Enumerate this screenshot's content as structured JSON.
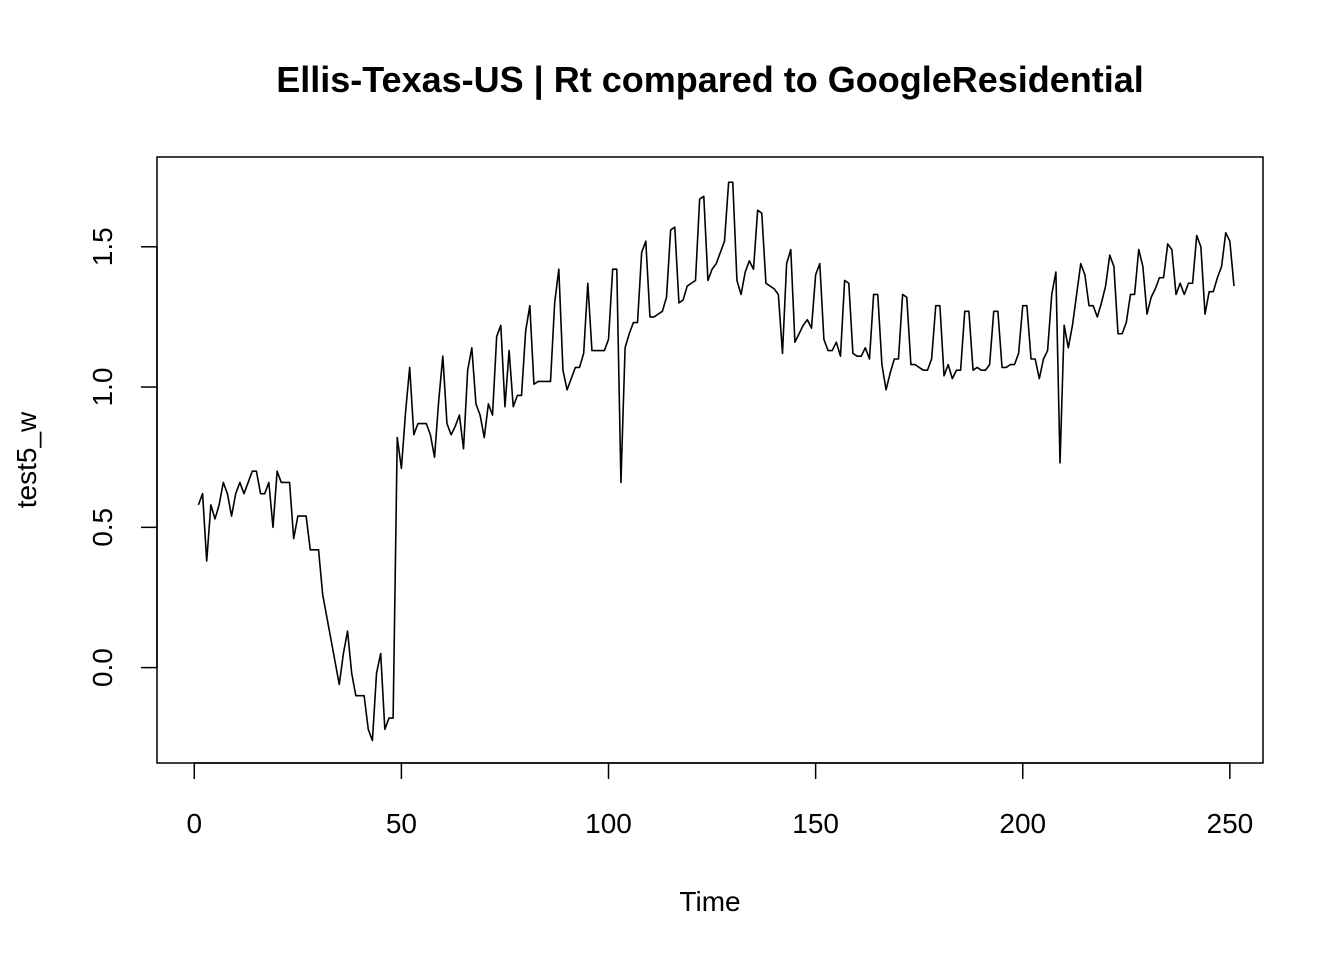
{
  "chart_data": {
    "type": "line",
    "title": "Ellis-Texas-US | Rt compared to GoogleResidential",
    "xlabel": "Time",
    "ylabel": "test5_w",
    "xlim": [
      -9,
      258
    ],
    "ylim": [
      -0.34,
      1.82
    ],
    "x_ticks": [
      0,
      50,
      100,
      150,
      200,
      250
    ],
    "y_ticks": [
      0.0,
      0.5,
      1.0,
      1.5
    ],
    "x_tick_labels": [
      "0",
      "50",
      "100",
      "150",
      "200",
      "250"
    ],
    "y_tick_labels": [
      "0.0",
      "0.5",
      "1.0",
      "1.5"
    ],
    "grid": false,
    "line_color": "#000000",
    "x_start": 1,
    "series": [
      {
        "values": [
          0.58,
          0.62,
          0.38,
          0.58,
          0.53,
          0.58,
          0.66,
          0.62,
          0.54,
          0.62,
          0.66,
          0.62,
          0.66,
          0.7,
          0.7,
          0.62,
          0.62,
          0.66,
          0.5,
          0.7,
          0.66,
          0.66,
          0.66,
          0.46,
          0.54,
          0.54,
          0.54,
          0.42,
          0.42,
          0.42,
          0.26,
          0.18,
          0.1,
          0.02,
          -0.06,
          0.05,
          0.13,
          -0.02,
          -0.1,
          -0.1,
          -0.1,
          -0.22,
          -0.26,
          -0.02,
          0.05,
          -0.22,
          -0.18,
          -0.18,
          0.82,
          0.71,
          0.91,
          1.07,
          0.83,
          0.87,
          0.87,
          0.87,
          0.83,
          0.75,
          0.95,
          1.11,
          0.87,
          0.83,
          0.86,
          0.9,
          0.78,
          1.06,
          1.14,
          0.94,
          0.9,
          0.82,
          0.94,
          0.9,
          1.18,
          1.22,
          0.93,
          1.13,
          0.93,
          0.97,
          0.97,
          1.2,
          1.29,
          1.01,
          1.02,
          1.02,
          1.02,
          1.02,
          1.3,
          1.42,
          1.06,
          0.99,
          1.03,
          1.07,
          1.07,
          1.12,
          1.37,
          1.13,
          1.13,
          1.13,
          1.13,
          1.17,
          1.42,
          1.42,
          0.66,
          1.14,
          1.19,
          1.23,
          1.23,
          1.48,
          1.52,
          1.25,
          1.25,
          1.26,
          1.27,
          1.32,
          1.56,
          1.57,
          1.3,
          1.31,
          1.36,
          1.37,
          1.38,
          1.67,
          1.68,
          1.38,
          1.42,
          1.44,
          1.48,
          1.52,
          1.73,
          1.73,
          1.38,
          1.33,
          1.41,
          1.45,
          1.42,
          1.63,
          1.62,
          1.37,
          1.36,
          1.35,
          1.33,
          1.12,
          1.44,
          1.49,
          1.16,
          1.19,
          1.22,
          1.24,
          1.21,
          1.4,
          1.44,
          1.17,
          1.13,
          1.13,
          1.16,
          1.11,
          1.38,
          1.37,
          1.12,
          1.11,
          1.11,
          1.14,
          1.1,
          1.33,
          1.33,
          1.08,
          0.99,
          1.05,
          1.1,
          1.1,
          1.33,
          1.32,
          1.08,
          1.08,
          1.07,
          1.06,
          1.06,
          1.1,
          1.29,
          1.29,
          1.04,
          1.08,
          1.03,
          1.06,
          1.06,
          1.27,
          1.27,
          1.06,
          1.07,
          1.06,
          1.06,
          1.08,
          1.27,
          1.27,
          1.07,
          1.07,
          1.08,
          1.08,
          1.12,
          1.29,
          1.29,
          1.1,
          1.1,
          1.03,
          1.1,
          1.13,
          1.33,
          1.41,
          0.73,
          1.22,
          1.14,
          1.22,
          1.33,
          1.44,
          1.4,
          1.29,
          1.29,
          1.25,
          1.3,
          1.36,
          1.47,
          1.43,
          1.19,
          1.19,
          1.23,
          1.33,
          1.33,
          1.49,
          1.43,
          1.26,
          1.32,
          1.35,
          1.39,
          1.39,
          1.51,
          1.49,
          1.33,
          1.37,
          1.33,
          1.37,
          1.37,
          1.54,
          1.5,
          1.26,
          1.34,
          1.34,
          1.39,
          1.43,
          1.55,
          1.52,
          1.36
        ]
      }
    ]
  }
}
